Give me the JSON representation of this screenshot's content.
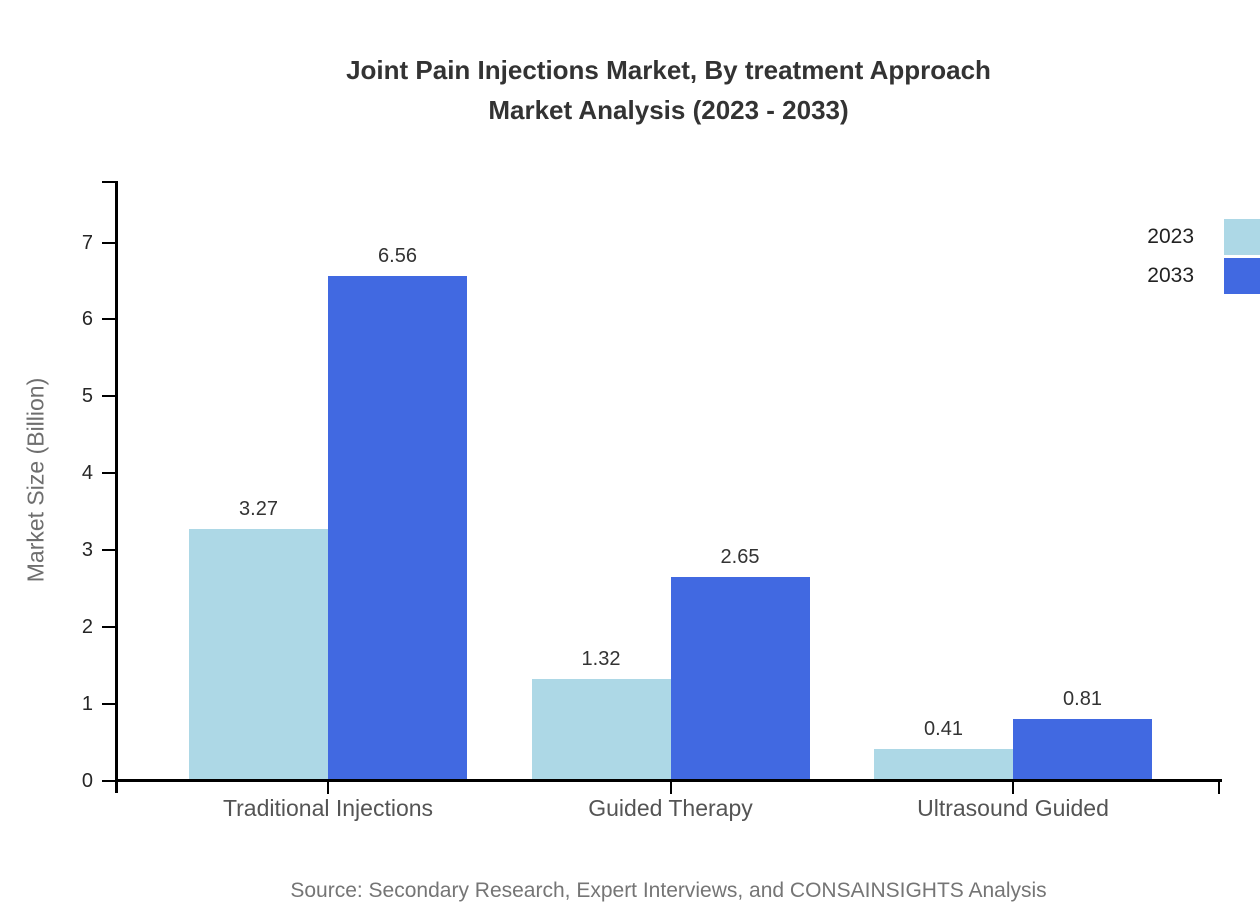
{
  "title": {
    "line1": "Joint Pain Injections Market, By treatment Approach",
    "line2": "Market Analysis (2023 - 2033)"
  },
  "source": "Source: Secondary Research, Expert Interviews, and CONSAINSIGHTS Analysis",
  "chart_data": {
    "type": "bar",
    "title": "Joint Pain Injections Market, By treatment Approach Market Analysis (2023 - 2033)",
    "categories": [
      "Traditional Injections",
      "Guided Therapy",
      "Ultrasound Guided"
    ],
    "series": [
      {
        "name": "2023",
        "color": "#ADD8E6",
        "values": [
          3.27,
          1.32,
          0.41
        ]
      },
      {
        "name": "2033",
        "color": "#4169E1",
        "values": [
          6.56,
          2.65,
          0.81
        ]
      }
    ],
    "xlabel": "",
    "ylabel": "Market Size (Billion)",
    "yticks": [
      0,
      1,
      2,
      3,
      4,
      5,
      6,
      7
    ],
    "ylim": [
      0,
      7.8
    ],
    "grid": false,
    "legend_position": "top-right",
    "value_labels": true
  },
  "colors": {
    "series_2023": "#ADD8E6",
    "series_2033": "#4169E1",
    "axis": "#000000",
    "title_text": "#333333",
    "tick_text": "#262626",
    "category_text": "#545454",
    "ylabel_text": "#6E6E6E",
    "source_text": "#757575",
    "background": "#FFFFFF"
  }
}
